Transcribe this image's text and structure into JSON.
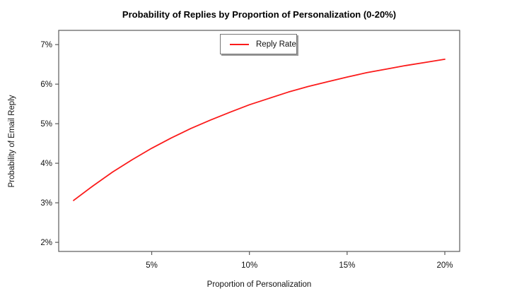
{
  "page": {
    "background": "#ffffff"
  },
  "chart_data": {
    "type": "line",
    "title": "Probability of Replies by Proportion of Personalization (0-20%)",
    "xlabel": "Proportion of Personalization",
    "ylabel": "Probability of Email Reply",
    "grid": false,
    "plot_border": true,
    "axis_color": "#5a5a5a",
    "xlim": [
      0.24,
      20.76
    ],
    "ylim": [
      1.77,
      7.36
    ],
    "x_ticks": {
      "values": [
        5,
        10,
        15,
        20
      ],
      "labels": [
        "5%",
        "10%",
        "15%",
        "20%"
      ]
    },
    "y_ticks": {
      "values": [
        2,
        3,
        4,
        5,
        6,
        7
      ],
      "labels": [
        "2%",
        "3%",
        "4%",
        "5%",
        "6%",
        "7%"
      ]
    },
    "legend": {
      "position": "upper center",
      "entries": [
        "Reply Rate"
      ]
    },
    "series": [
      {
        "name": "Reply Rate",
        "color": "#fb1b1b",
        "x": [
          1,
          2,
          3,
          4,
          5,
          6,
          7,
          8,
          9,
          10,
          11,
          12,
          13,
          14,
          15,
          16,
          17,
          18,
          19,
          20
        ],
        "y": [
          3.06,
          3.43,
          3.78,
          4.09,
          4.38,
          4.64,
          4.88,
          5.09,
          5.29,
          5.48,
          5.64,
          5.8,
          5.94,
          6.06,
          6.18,
          6.29,
          6.38,
          6.47,
          6.55,
          6.63
        ]
      }
    ]
  }
}
